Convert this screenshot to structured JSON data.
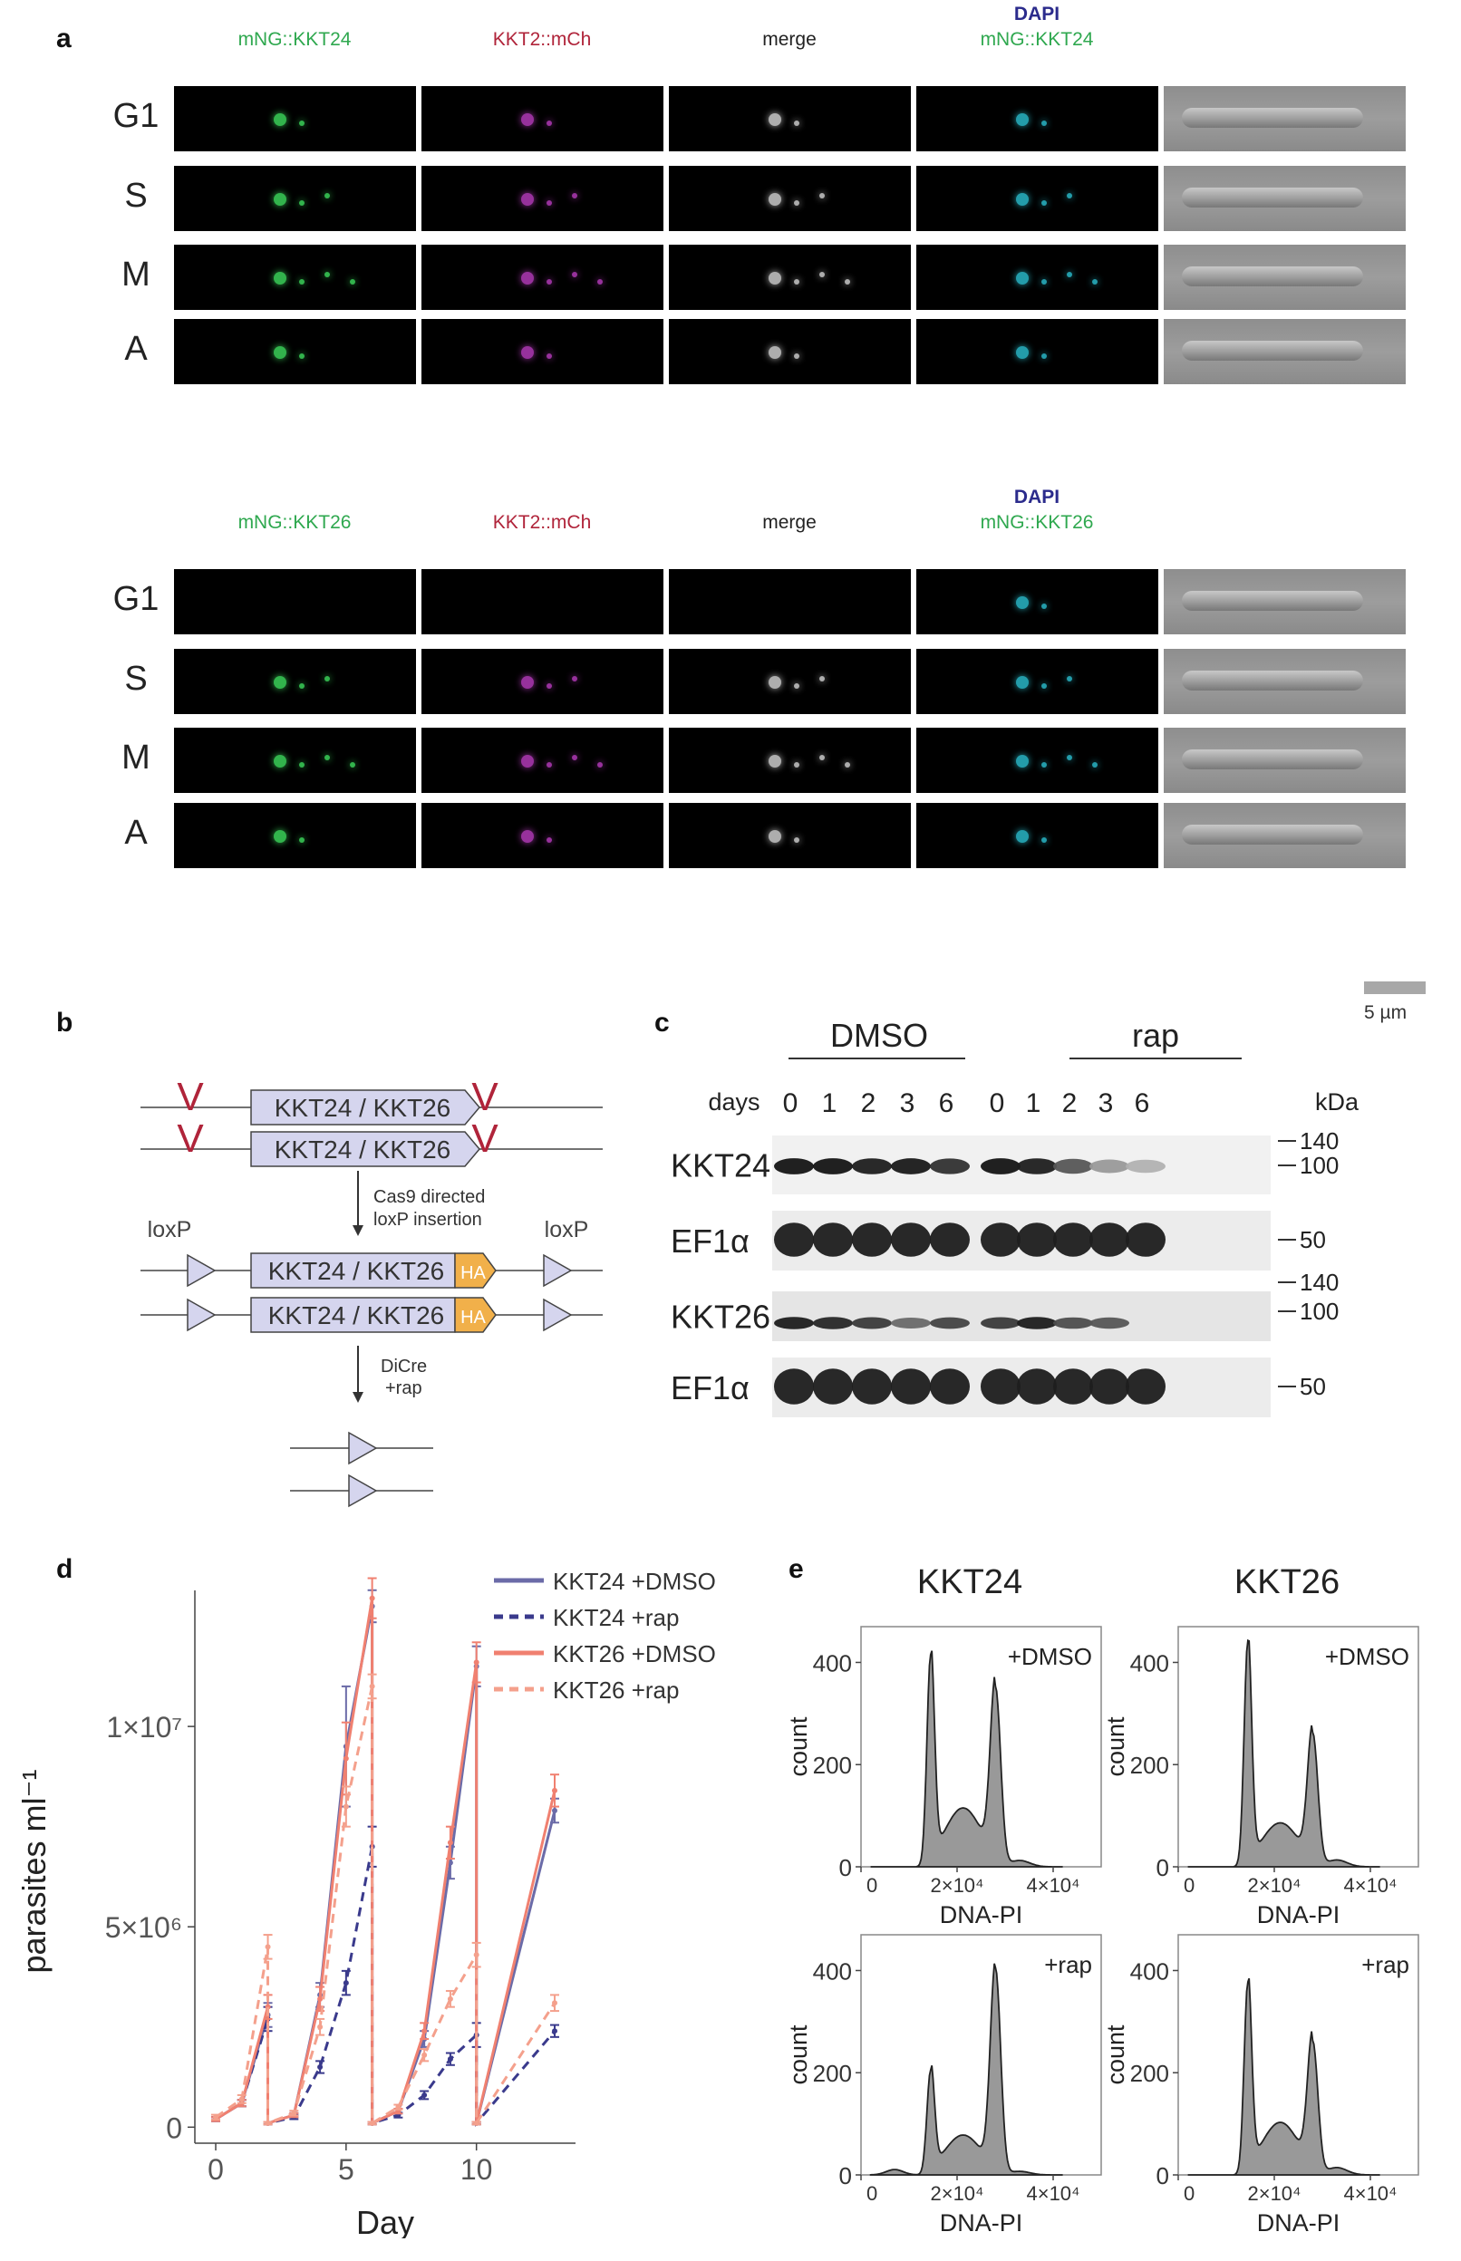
{
  "panel_labels": {
    "a": "a",
    "b": "b",
    "c": "c",
    "d": "d",
    "e": "e"
  },
  "panel_a": {
    "set1": {
      "channels": [
        "mNG::KKT24",
        "KKT2::mCh",
        "merge",
        "DAPI",
        "mNG::KKT24"
      ],
      "stages": [
        "G1",
        "S",
        "M",
        "A"
      ]
    },
    "set2": {
      "channels": [
        "mNG::KKT26",
        "KKT2::mCh",
        "merge",
        "DAPI",
        "mNG::KKT26"
      ],
      "stages": [
        "G1",
        "S",
        "M",
        "A"
      ]
    },
    "scale_bar": "5 µm",
    "colors": {
      "mNG": "#2fa84f",
      "mCh": "#b0243a",
      "DAPI": "#2b2b8c"
    }
  },
  "panel_b": {
    "gene": "KKT24 / KKT26",
    "tag": "HA",
    "step1": [
      "Cas9 directed",
      "loxP insertion"
    ],
    "step2": [
      "DiCre",
      "+rap"
    ],
    "site": "loxP",
    "cut_mark": "V"
  },
  "panel_c": {
    "conditions": [
      "DMSO",
      "rap"
    ],
    "days_label": "days",
    "days": [
      "0",
      "1",
      "2",
      "3",
      "6",
      "0",
      "1",
      "2",
      "3",
      "6"
    ],
    "unit": "kDa",
    "blot1": {
      "target": "KKT24",
      "markers": [
        "140",
        "100"
      ],
      "intensity": [
        0.95,
        0.95,
        0.9,
        0.92,
        0.8,
        0.95,
        0.9,
        0.6,
        0.25,
        0.12
      ]
    },
    "loading1": {
      "target": "EF1α",
      "markers": [
        "50"
      ]
    },
    "blot2": {
      "target": "KKT26",
      "markers": [
        "140",
        "100"
      ],
      "intensity": [
        0.9,
        0.85,
        0.75,
        0.5,
        0.7,
        0.75,
        0.9,
        0.65,
        0.6,
        0.0
      ]
    },
    "loading2": {
      "target": "EF1α",
      "markers": [
        "50"
      ]
    }
  },
  "chart_data": [
    {
      "type": "line",
      "panel": "d",
      "xlabel": "Day",
      "ylabel": "parasites ml⁻¹",
      "xlim": [
        -0.8,
        13.8
      ],
      "ylim": [
        -400000,
        14300000
      ],
      "x_ticks": [
        0,
        5,
        10
      ],
      "y_ticks": [
        0,
        5000000,
        10000000
      ],
      "y_tick_labels": [
        "0",
        "5×10⁶",
        "1×10⁷"
      ],
      "legend_position": "top-right",
      "series": [
        {
          "name": "KKT24 +DMSO",
          "color": "#6b6ba8",
          "style": "solid",
          "points": [
            [
              0,
              200000
            ],
            [
              1,
              600000
            ],
            [
              2,
              2800000
            ],
            [
              2,
              100000
            ],
            [
              3,
              300000
            ],
            [
              4,
              3300000
            ],
            [
              5,
              9500000
            ],
            [
              6,
              13000000
            ],
            [
              6,
              100000
            ],
            [
              7,
              400000
            ],
            [
              8,
              2200000
            ],
            [
              9,
              6600000
            ],
            [
              10,
              11500000
            ],
            [
              10,
              100000
            ],
            [
              13,
              7900000
            ]
          ],
          "err": [
            50000,
            80000,
            300000,
            30000,
            50000,
            300000,
            1500000,
            400000,
            30000,
            60000,
            200000,
            400000,
            500000,
            30000,
            300000
          ]
        },
        {
          "name": "KKT24 +rap",
          "color": "#3a3a8c",
          "style": "dashed",
          "points": [
            [
              0,
              200000
            ],
            [
              1,
              600000
            ],
            [
              2,
              2700000
            ],
            [
              2,
              100000
            ],
            [
              3,
              250000
            ],
            [
              4,
              1500000
            ],
            [
              5,
              3600000
            ],
            [
              6,
              7000000
            ],
            [
              6,
              100000
            ],
            [
              7,
              300000
            ],
            [
              8,
              800000
            ],
            [
              9,
              1700000
            ],
            [
              10,
              2300000
            ],
            [
              10,
              100000
            ],
            [
              13,
              2400000
            ]
          ],
          "err": [
            50000,
            80000,
            300000,
            30000,
            50000,
            150000,
            300000,
            500000,
            30000,
            60000,
            100000,
            150000,
            300000,
            30000,
            150000
          ]
        },
        {
          "name": "KKT26 +DMSO",
          "color": "#f08070",
          "style": "solid",
          "points": [
            [
              0,
              200000
            ],
            [
              1,
              600000
            ],
            [
              2,
              3000000
            ],
            [
              2,
              100000
            ],
            [
              3,
              300000
            ],
            [
              4,
              3200000
            ],
            [
              5,
              9200000
            ],
            [
              6,
              13200000
            ],
            [
              6,
              100000
            ],
            [
              7,
              400000
            ],
            [
              8,
              2400000
            ],
            [
              9,
              7100000
            ],
            [
              10,
              11600000
            ],
            [
              10,
              100000
            ],
            [
              13,
              8400000
            ]
          ],
          "err": [
            50000,
            80000,
            300000,
            30000,
            50000,
            300000,
            900000,
            500000,
            30000,
            60000,
            200000,
            400000,
            500000,
            30000,
            400000
          ]
        },
        {
          "name": "KKT26 +rap",
          "color": "#f4a08c",
          "style": "dashed",
          "points": [
            [
              0,
              250000
            ],
            [
              1,
              700000
            ],
            [
              2,
              4500000
            ],
            [
              2,
              100000
            ],
            [
              3,
              350000
            ],
            [
              4,
              2500000
            ],
            [
              5,
              8000000
            ],
            [
              6,
              11000000
            ],
            [
              6,
              100000
            ],
            [
              7,
              500000
            ],
            [
              8,
              1800000
            ],
            [
              9,
              3200000
            ],
            [
              10,
              4300000
            ],
            [
              10,
              100000
            ],
            [
              13,
              3100000
            ]
          ],
          "err": [
            60000,
            100000,
            300000,
            30000,
            60000,
            200000,
            500000,
            300000,
            30000,
            60000,
            150000,
            200000,
            300000,
            30000,
            200000
          ]
        }
      ]
    },
    {
      "type": "area",
      "panel": "e",
      "title_left": "KKT24",
      "title_right": "KKT26",
      "xlabel": "DNA-PI",
      "ylabel": "count",
      "y_ticks": [
        0,
        200,
        400
      ],
      "x_ticks": [
        0,
        20000,
        40000
      ],
      "x_tick_labels": [
        "0",
        "2×10⁴",
        "4×10⁴"
      ],
      "xlim": [
        0,
        50000
      ],
      "ylim": [
        0,
        470
      ],
      "peak_x": [
        14500,
        28000
      ],
      "histograms": [
        {
          "gene": "KKT24",
          "condition": "+DMSO",
          "peak_heights": [
            415,
            352
          ],
          "valley": [
            0.0,
            0.58,
            0.44,
            0.62
          ]
        },
        {
          "gene": "KKT26",
          "condition": "+DMSO",
          "peak_heights": [
            443,
            262
          ],
          "valley": [
            0.0,
            0.42,
            0.4,
            0.67
          ]
        },
        {
          "gene": "KKT24",
          "condition": "+rap",
          "peak_heights": [
            205,
            405
          ],
          "valley": [
            0.35,
            0.58,
            0.45,
            0.35
          ]
        },
        {
          "gene": "KKT26",
          "condition": "+rap",
          "peak_heights": [
            378,
            262
          ],
          "valley": [
            0.0,
            0.56,
            0.55,
            0.72
          ]
        }
      ]
    }
  ]
}
